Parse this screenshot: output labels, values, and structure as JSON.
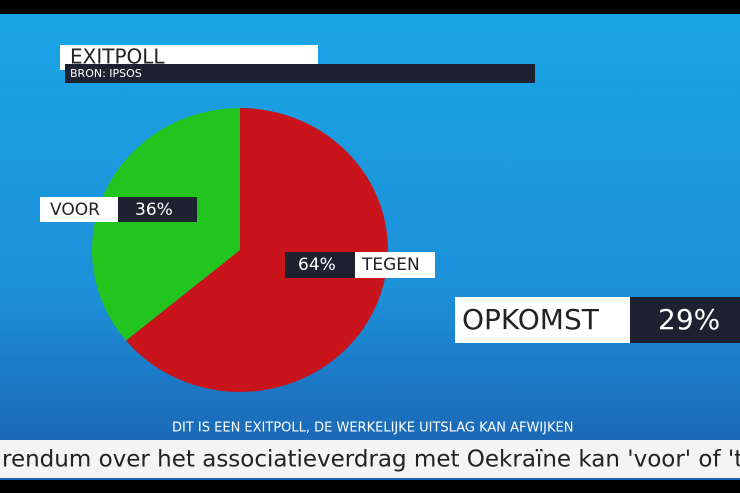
{
  "chart_data": {
    "type": "pie",
    "title": "EXITPOLL",
    "subtitle": "BRON: IPSOS",
    "categories": [
      "VOOR",
      "TEGEN"
    ],
    "values": [
      36,
      64
    ],
    "value_labels": [
      "36%",
      "64%"
    ],
    "colors": [
      "#22c41e",
      "#c8141a"
    ],
    "annotations": [
      "OPKOMST",
      "29%"
    ],
    "footer": "DIT IS EEN EXITPOLL, DE WERKELIJKE UITSLAG KAN AFWIJKEN",
    "ticker": "rendum over het associatieverdrag met Oekraïne kan 'voor' of 't"
  }
}
